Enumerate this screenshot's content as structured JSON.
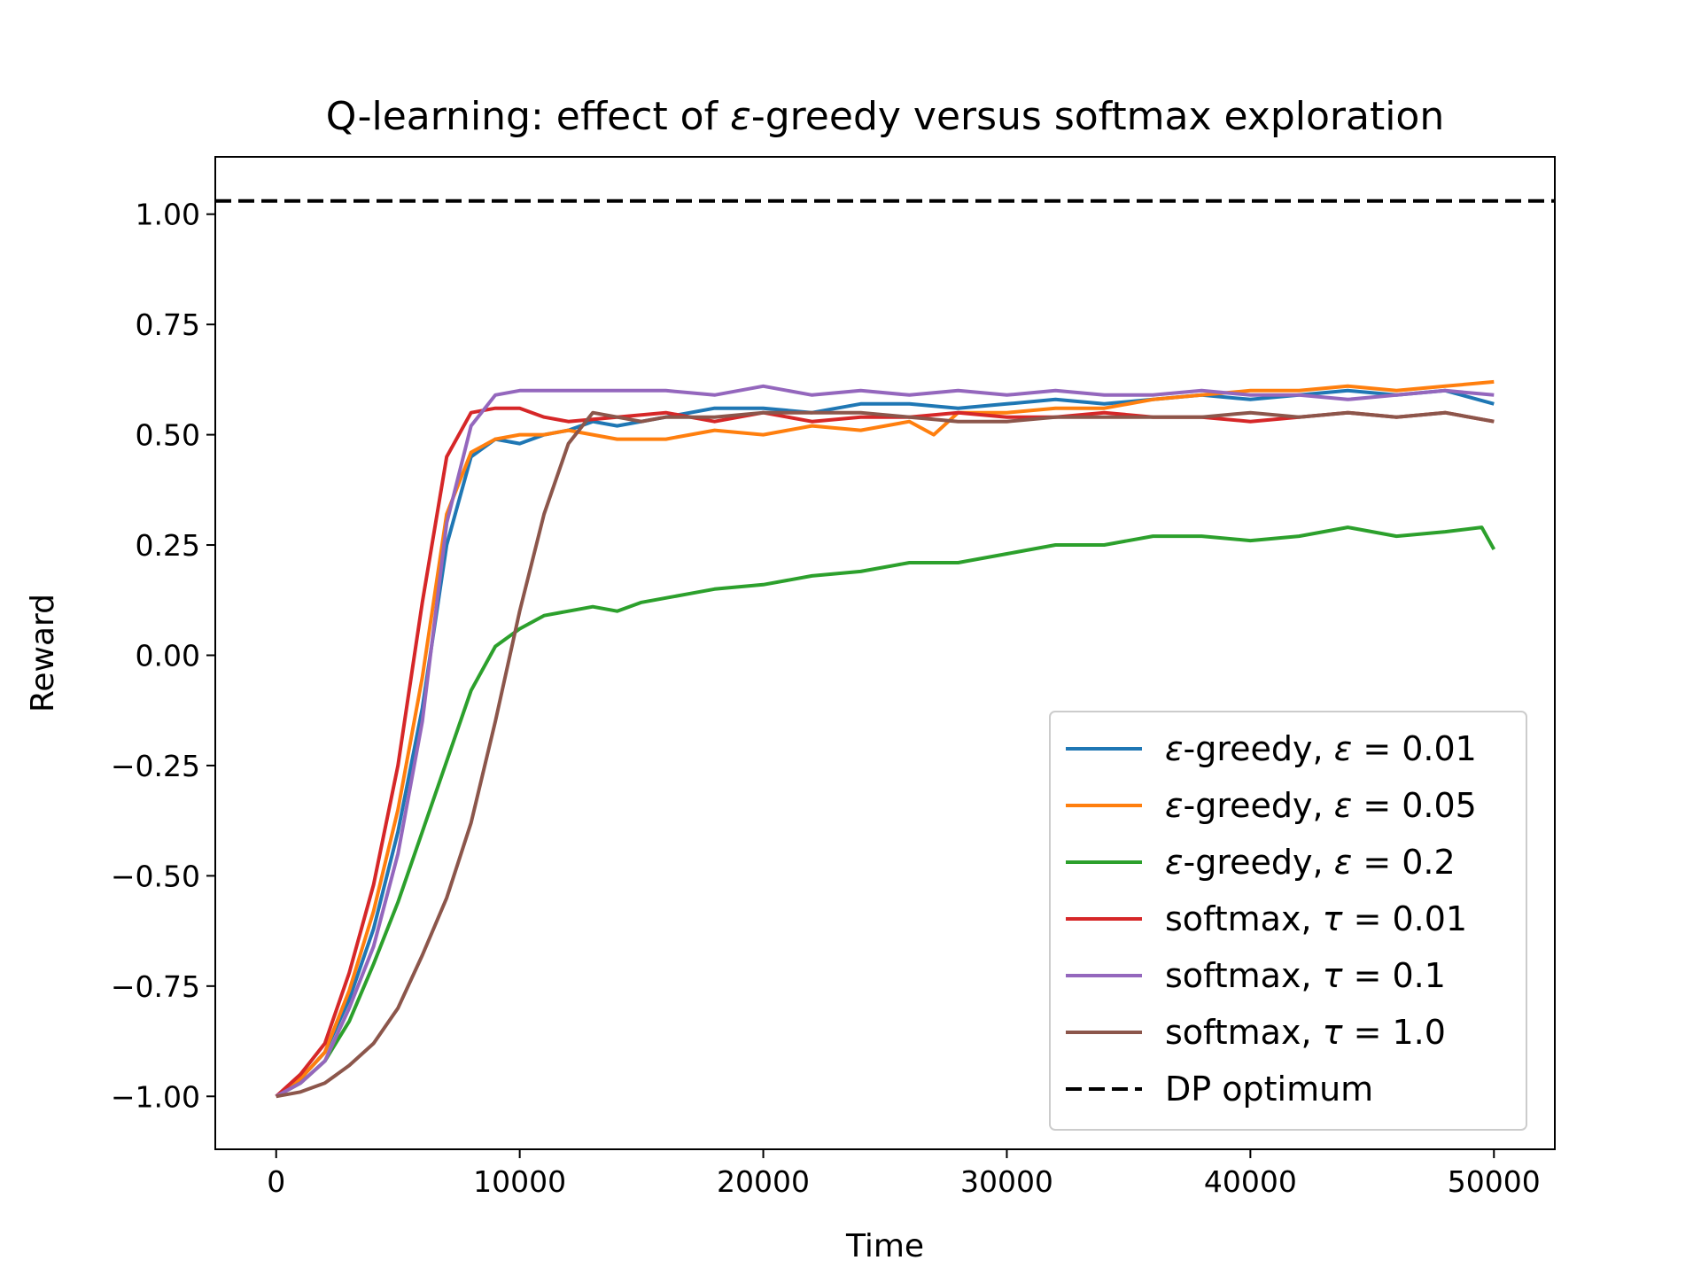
{
  "chart_data": {
    "type": "line",
    "title": "Q-learning: effect of ε-greedy versus softmax exploration",
    "xlabel": "Time",
    "ylabel": "Reward",
    "xlim": [
      -2500,
      52500
    ],
    "ylim": [
      -1.12,
      1.13
    ],
    "xticks": [
      0,
      10000,
      20000,
      30000,
      40000,
      50000
    ],
    "xtick_labels": [
      "0",
      "10000",
      "20000",
      "30000",
      "40000",
      "50000"
    ],
    "yticks": [
      -1.0,
      -0.75,
      -0.5,
      -0.25,
      0.0,
      0.25,
      0.5,
      0.75,
      1.0
    ],
    "ytick_labels": [
      "−1.00",
      "−0.75",
      "−0.50",
      "−0.25",
      "0.00",
      "0.25",
      "0.50",
      "0.75",
      "1.00"
    ],
    "grid": false,
    "legend_position": "lower-right",
    "series": [
      {
        "name": "ε-greedy, ε = 0.01",
        "label_parts": [
          "ε",
          "-greedy, ",
          "ε",
          " = 0.01"
        ],
        "color": "#1f77b4",
        "dash": "solid",
        "x": [
          0,
          1000,
          2000,
          3000,
          4000,
          5000,
          6000,
          7000,
          8000,
          9000,
          10000,
          11000,
          12000,
          13000,
          14000,
          16000,
          18000,
          20000,
          22000,
          24000,
          26000,
          28000,
          30000,
          32000,
          34000,
          36000,
          38000,
          40000,
          42000,
          44000,
          46000,
          48000,
          50000
        ],
        "y": [
          -1.0,
          -0.96,
          -0.9,
          -0.78,
          -0.62,
          -0.4,
          -0.12,
          0.25,
          0.45,
          0.49,
          0.48,
          0.5,
          0.51,
          0.53,
          0.52,
          0.54,
          0.56,
          0.56,
          0.55,
          0.57,
          0.57,
          0.56,
          0.57,
          0.58,
          0.57,
          0.58,
          0.59,
          0.58,
          0.59,
          0.6,
          0.59,
          0.6,
          0.57
        ]
      },
      {
        "name": "ε-greedy, ε = 0.05",
        "label_parts": [
          "ε",
          "-greedy, ",
          "ε",
          " = 0.05"
        ],
        "color": "#ff7f0e",
        "dash": "solid",
        "x": [
          0,
          1000,
          2000,
          3000,
          4000,
          5000,
          6000,
          7000,
          8000,
          9000,
          10000,
          11000,
          12000,
          13000,
          14000,
          16000,
          18000,
          20000,
          22000,
          24000,
          26000,
          27000,
          28000,
          30000,
          32000,
          34000,
          36000,
          38000,
          40000,
          42000,
          44000,
          46000,
          48000,
          50000
        ],
        "y": [
          -1.0,
          -0.96,
          -0.9,
          -0.76,
          -0.58,
          -0.35,
          -0.05,
          0.32,
          0.46,
          0.49,
          0.5,
          0.5,
          0.51,
          0.5,
          0.49,
          0.49,
          0.51,
          0.5,
          0.52,
          0.51,
          0.53,
          0.5,
          0.55,
          0.55,
          0.56,
          0.56,
          0.58,
          0.59,
          0.6,
          0.6,
          0.61,
          0.6,
          0.61,
          0.62
        ]
      },
      {
        "name": "ε-greedy, ε = 0.2",
        "label_parts": [
          "ε",
          "-greedy, ",
          "ε",
          " = 0.2"
        ],
        "color": "#2ca02c",
        "dash": "solid",
        "x": [
          0,
          1000,
          2000,
          3000,
          4000,
          5000,
          6000,
          7000,
          8000,
          9000,
          10000,
          11000,
          12000,
          13000,
          14000,
          15000,
          16000,
          17000,
          18000,
          20000,
          22000,
          24000,
          26000,
          28000,
          30000,
          32000,
          34000,
          36000,
          38000,
          40000,
          42000,
          44000,
          46000,
          48000,
          49500,
          50000
        ],
        "y": [
          -1.0,
          -0.97,
          -0.92,
          -0.83,
          -0.7,
          -0.56,
          -0.4,
          -0.24,
          -0.08,
          0.02,
          0.06,
          0.09,
          0.1,
          0.11,
          0.1,
          0.12,
          0.13,
          0.14,
          0.15,
          0.16,
          0.18,
          0.19,
          0.21,
          0.21,
          0.23,
          0.25,
          0.25,
          0.27,
          0.27,
          0.26,
          0.27,
          0.29,
          0.27,
          0.28,
          0.29,
          0.24
        ]
      },
      {
        "name": "softmax, τ = 0.01",
        "label_parts": [
          "softmax, ",
          "τ",
          " = 0.01"
        ],
        "color": "#d62728",
        "dash": "solid",
        "x": [
          0,
          1000,
          2000,
          3000,
          4000,
          5000,
          6000,
          7000,
          8000,
          9000,
          10000,
          11000,
          12000,
          14000,
          16000,
          18000,
          20000,
          22000,
          24000,
          26000,
          28000,
          30000,
          32000,
          34000,
          36000,
          38000,
          40000,
          42000,
          44000,
          46000,
          48000,
          50000
        ],
        "y": [
          -1.0,
          -0.95,
          -0.88,
          -0.72,
          -0.52,
          -0.25,
          0.12,
          0.45,
          0.55,
          0.56,
          0.56,
          0.54,
          0.53,
          0.54,
          0.55,
          0.53,
          0.55,
          0.53,
          0.54,
          0.54,
          0.55,
          0.54,
          0.54,
          0.55,
          0.54,
          0.54,
          0.53,
          0.54,
          0.55,
          0.54,
          0.55,
          0.53
        ]
      },
      {
        "name": "softmax, τ = 0.1",
        "label_parts": [
          "softmax, ",
          "τ",
          " = 0.1"
        ],
        "color": "#9467bd",
        "dash": "solid",
        "x": [
          0,
          1000,
          2000,
          3000,
          4000,
          5000,
          6000,
          7000,
          8000,
          9000,
          10000,
          12000,
          14000,
          16000,
          18000,
          20000,
          22000,
          24000,
          26000,
          28000,
          30000,
          32000,
          34000,
          36000,
          38000,
          40000,
          42000,
          44000,
          46000,
          48000,
          50000
        ],
        "y": [
          -1.0,
          -0.97,
          -0.92,
          -0.8,
          -0.66,
          -0.45,
          -0.15,
          0.3,
          0.52,
          0.59,
          0.6,
          0.6,
          0.6,
          0.6,
          0.59,
          0.61,
          0.59,
          0.6,
          0.59,
          0.6,
          0.59,
          0.6,
          0.59,
          0.59,
          0.6,
          0.59,
          0.59,
          0.58,
          0.59,
          0.6,
          0.59
        ]
      },
      {
        "name": "softmax, τ = 1.0",
        "label_parts": [
          "softmax, ",
          "τ",
          " = 1.0"
        ],
        "color": "#8c564b",
        "dash": "solid",
        "x": [
          0,
          1000,
          2000,
          3000,
          4000,
          5000,
          6000,
          7000,
          8000,
          9000,
          10000,
          11000,
          12000,
          13000,
          14000,
          15000,
          16000,
          18000,
          20000,
          22000,
          24000,
          26000,
          28000,
          30000,
          32000,
          34000,
          36000,
          38000,
          40000,
          42000,
          44000,
          46000,
          48000,
          50000
        ],
        "y": [
          -1.0,
          -0.99,
          -0.97,
          -0.93,
          -0.88,
          -0.8,
          -0.68,
          -0.55,
          -0.38,
          -0.15,
          0.1,
          0.32,
          0.48,
          0.55,
          0.54,
          0.53,
          0.54,
          0.54,
          0.55,
          0.55,
          0.55,
          0.54,
          0.53,
          0.53,
          0.54,
          0.54,
          0.54,
          0.54,
          0.55,
          0.54,
          0.55,
          0.54,
          0.55,
          0.53
        ]
      },
      {
        "name": "DP optimum",
        "label_parts": [
          "DP optimum"
        ],
        "color": "#000000",
        "dash": "dashed",
        "x": [
          -2500,
          52500
        ],
        "y": [
          1.03,
          1.03
        ]
      }
    ]
  }
}
